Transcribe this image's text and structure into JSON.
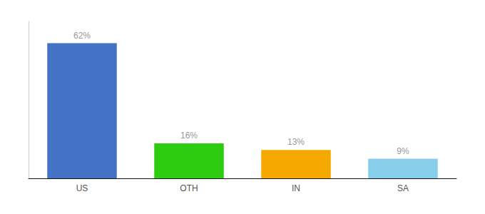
{
  "chart_data": {
    "type": "bar",
    "categories": [
      "US",
      "OTH",
      "IN",
      "SA"
    ],
    "values": [
      62,
      16,
      13,
      9
    ],
    "value_labels": [
      "62%",
      "16%",
      "13%",
      "9%"
    ],
    "data_labels": true,
    "colors": [
      "#4472c4",
      "#2ecc11",
      "#f5a800",
      "#87ceeb"
    ],
    "ylim": [
      0,
      72
    ],
    "grid": false,
    "tick_labels": "x"
  }
}
